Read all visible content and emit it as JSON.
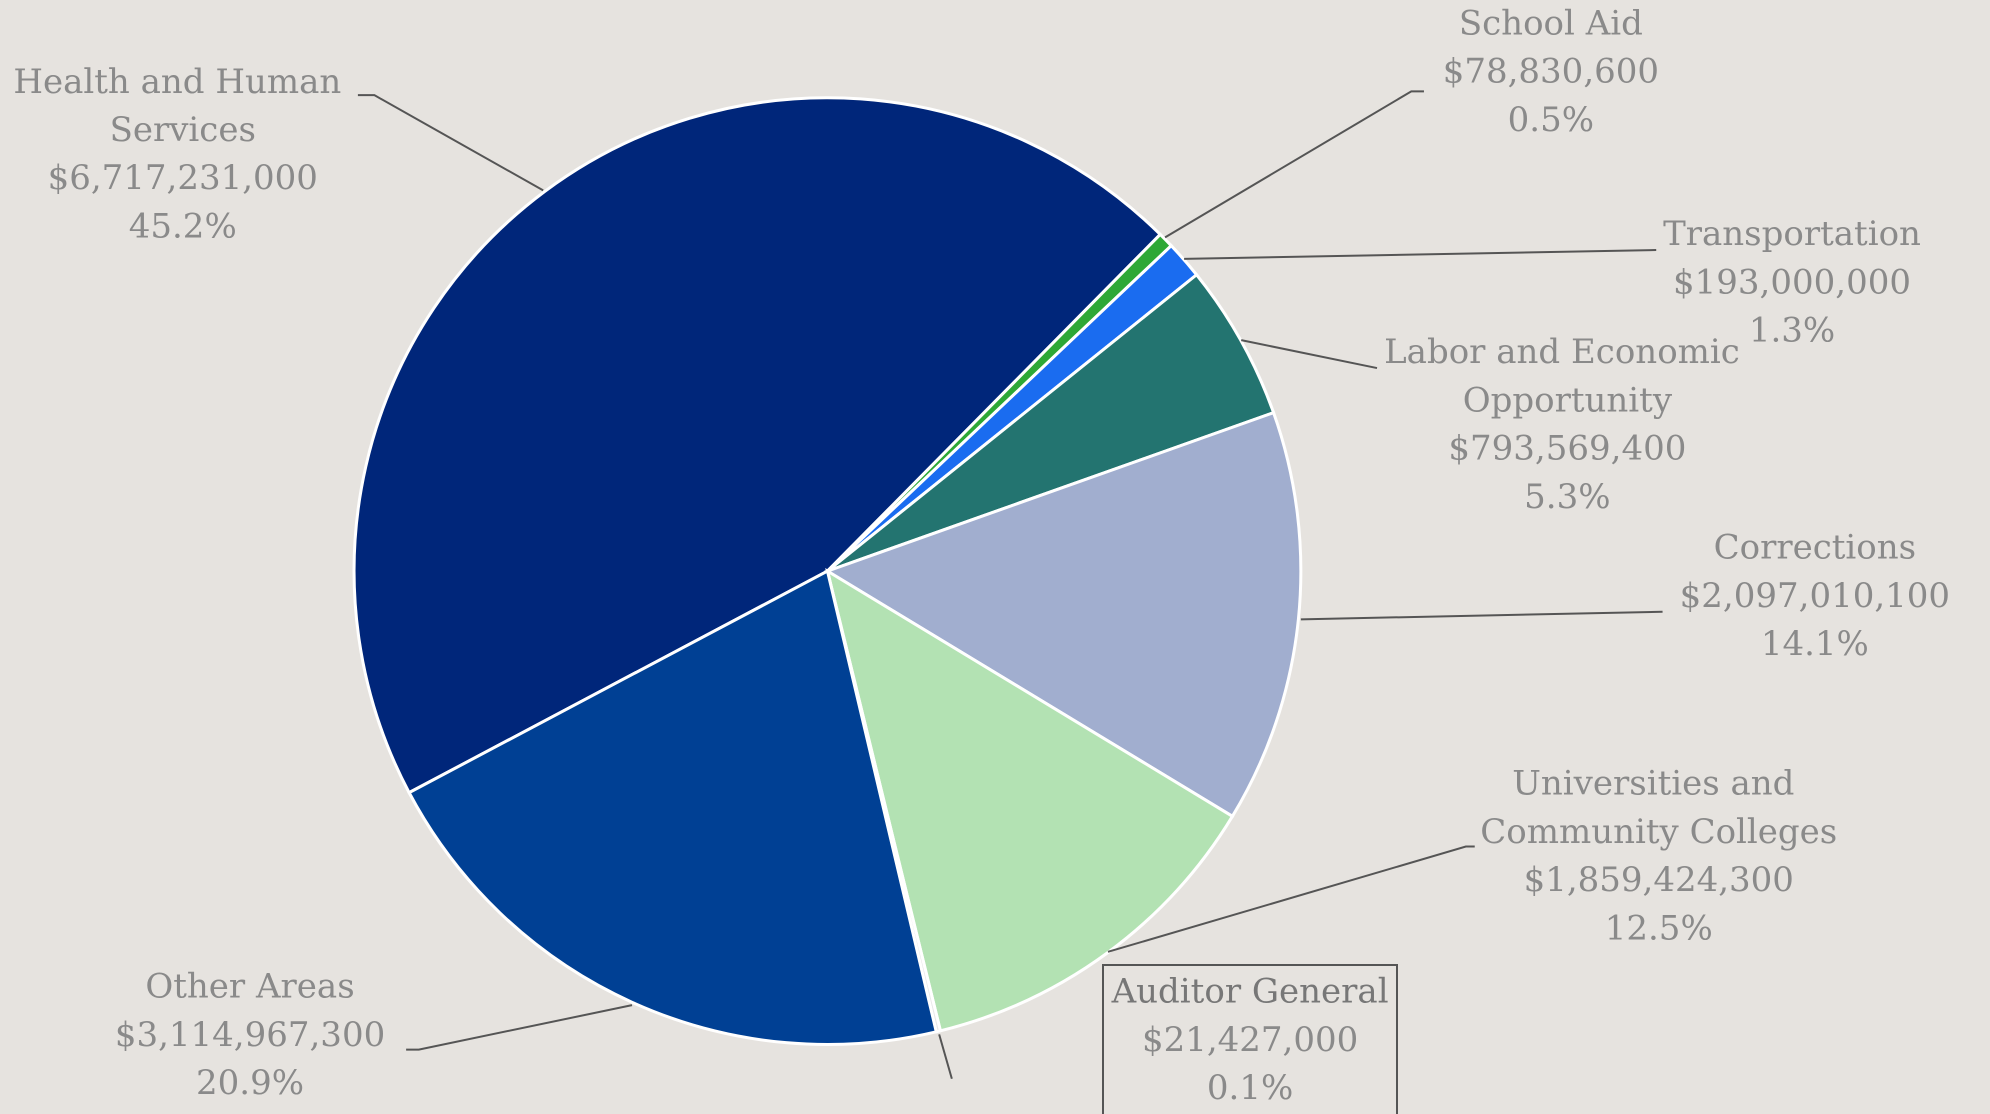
{
  "chart_data": {
    "type": "pie",
    "categories": [
      "Health and Human Services",
      "School Aid",
      "Transportation",
      "Labor and Economic Opportunity",
      "Corrections",
      "Universities and Community Colleges",
      "Auditor General",
      "Other Areas"
    ],
    "values": [
      6717231000,
      78830600,
      193000000,
      793569400,
      2097010100,
      1859424300,
      21427000,
      3114967300
    ],
    "value_labels": [
      "$6,717,231,000",
      "$78,830,600",
      "$193,000,000",
      "$793,569,400",
      "$2,097,010,100",
      "$1,859,424,300",
      "$21,427,000",
      "$3,114,967,300"
    ],
    "percent_labels": [
      "45.2%",
      "0.5%",
      "1.3%",
      "5.3%",
      "14.1%",
      "12.5%",
      "0.1%",
      "20.9%"
    ],
    "colors": [
      "#00267a",
      "#2ea836",
      "#1a6cf0",
      "#237470",
      "#a1aecf",
      "#b3e2b3",
      "#e8e8e8",
      "#004094"
    ]
  }
}
